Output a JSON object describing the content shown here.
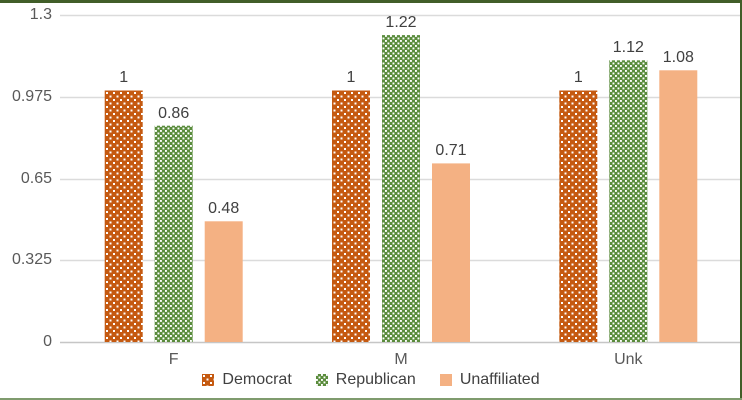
{
  "chart_data": {
    "type": "bar",
    "categories": [
      "F",
      "M",
      "Unk"
    ],
    "series": [
      {
        "name": "Democrat",
        "values": [
          1,
          1,
          1
        ],
        "color": "#C55A11",
        "pattern": "dots"
      },
      {
        "name": "Republican",
        "values": [
          0.86,
          1.22,
          1.12
        ],
        "color": "#5A8C3C",
        "pattern": "diamond-weave"
      },
      {
        "name": "Unaffiliated",
        "values": [
          0.48,
          0.71,
          1.08
        ],
        "color": "#F4B183",
        "pattern": "solid"
      }
    ],
    "data_labels": true,
    "y_ticks": [
      0,
      0.325,
      0.65,
      0.975,
      1.3
    ],
    "ylim": [
      0,
      1.3
    ],
    "grid": true,
    "legend_position": "bottom",
    "title": "",
    "xlabel": "",
    "ylabel": ""
  },
  "colors": {
    "background": "#FFFFFF",
    "gridline": "#DBDBDB",
    "axis_line": "#C6C6C6",
    "tick_label": "#595959",
    "category_label": "#595959",
    "value_label": "#404040",
    "legend_label": "#404040",
    "pattern_white": "#FFFFFF",
    "border_top_right": "#415E29",
    "border_bottom": "#7F9B6E"
  }
}
